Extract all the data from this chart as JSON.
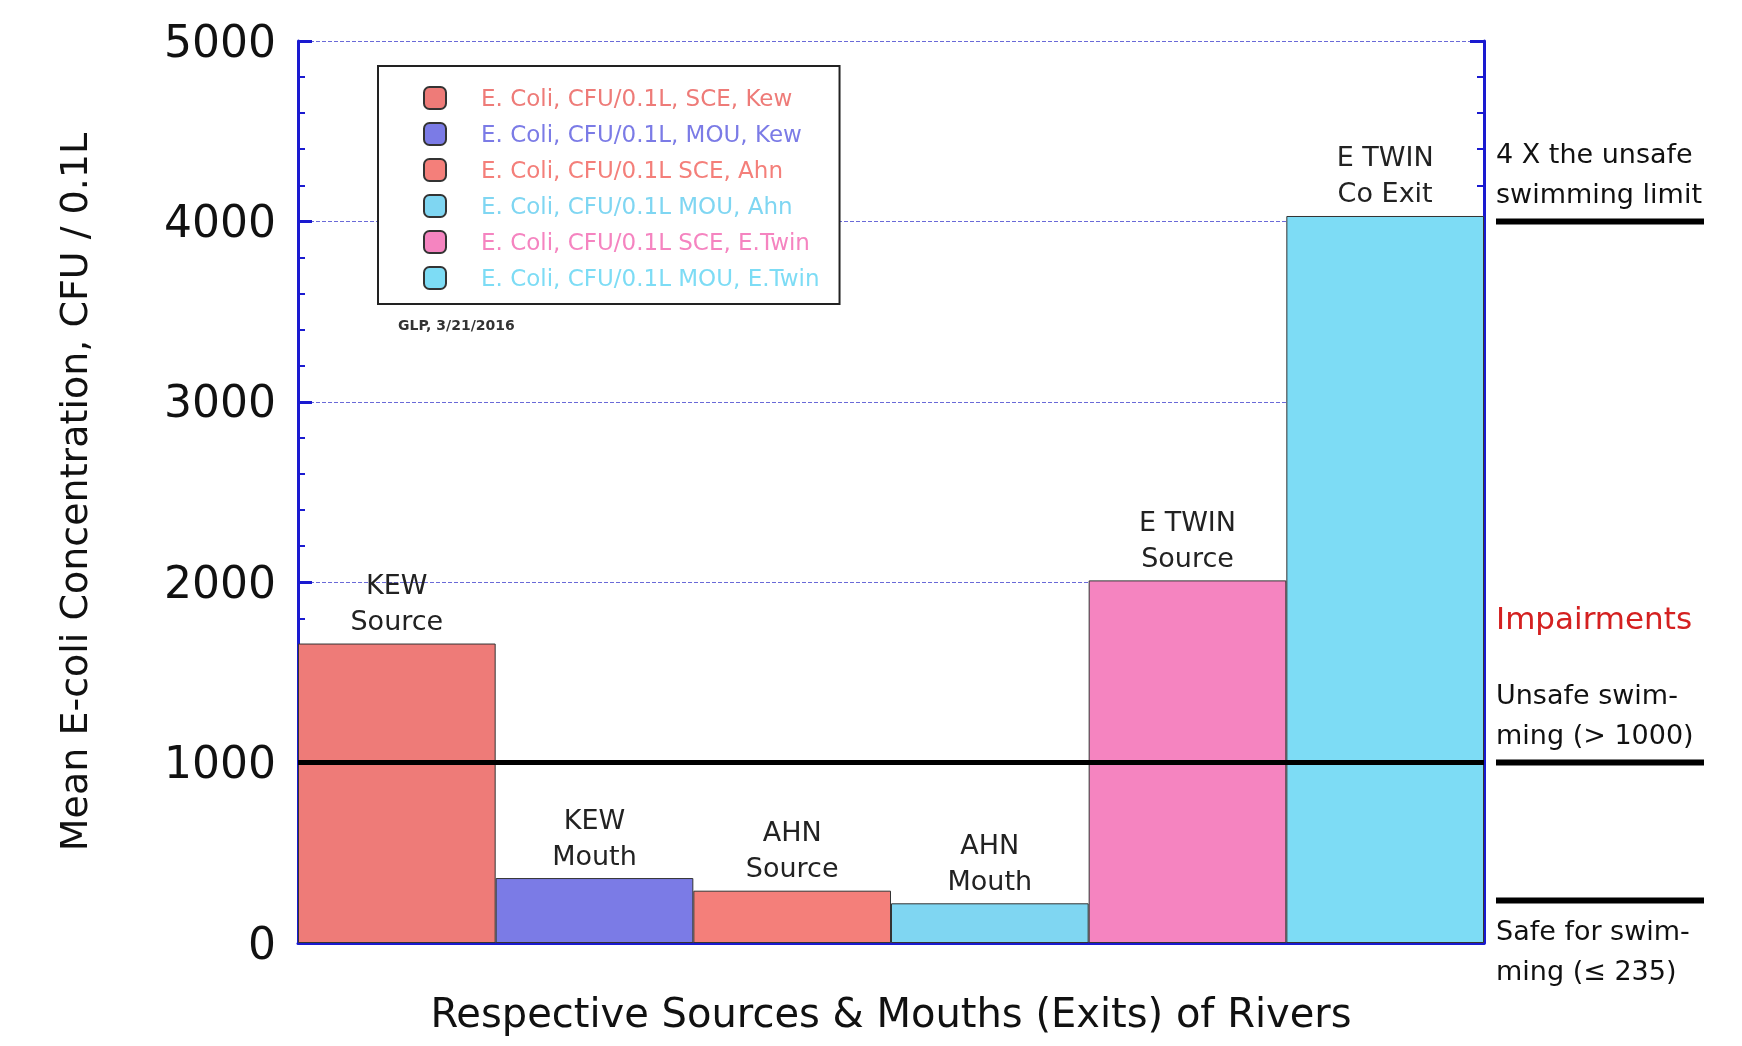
{
  "chart_data": {
    "type": "bar",
    "xlabel": "Respective Sources & Mouths (Exits) of Rivers",
    "ylabel": "Mean E-coli Concentration, CFU / 0.1L",
    "categories": [
      "KEW\nSource",
      "KEW\nMouth",
      "AHN\nSource",
      "AHN\nMouth",
      "E TWIN\nSource",
      "E TWIN\nCo Exit"
    ],
    "series": [
      {
        "name": "E. Coli, CFU/0.1L, SCE, Kew",
        "color": "#ee7b78",
        "values": [
          1660,
          null,
          null,
          null,
          null,
          null
        ]
      },
      {
        "name": "E. Coli, CFU/0.1L, MOU, Kew",
        "color": "#7b7be6",
        "values": [
          null,
          360,
          null,
          null,
          null,
          null
        ]
      },
      {
        "name": "E. Coli, CFU/0.1L SCE, Ahn",
        "color": "#f47f7a",
        "values": [
          null,
          null,
          290,
          null,
          null,
          null
        ]
      },
      {
        "name": "E. Coli, CFU/0.1L MOU, Ahn",
        "color": "#7fd6f2",
        "values": [
          null,
          null,
          null,
          220,
          null,
          null
        ]
      },
      {
        "name": "E. Coli, CFU/0.1L SCE, E.Twin",
        "color": "#f584c0",
        "values": [
          null,
          null,
          null,
          null,
          2010,
          null
        ]
      },
      {
        "name": "E. Coli, CFU/0.1L MOU, E.Twin",
        "color": "#7ddcf5",
        "values": [
          null,
          null,
          null,
          null,
          null,
          4030
        ]
      }
    ],
    "ylim": [
      0,
      5000
    ],
    "yticks": [
      0,
      1000,
      2000,
      3000,
      4000,
      5000
    ],
    "grid": "y",
    "legend": "top left",
    "tick_labels": "y",
    "ref_lines": [
      {
        "axis": "y",
        "value": 4000,
        "label": "4 X the unsafe\nswimming limit"
      },
      {
        "axis": "y",
        "value": 1000,
        "label": "Unsafe swim-\nming (> 1000)",
        "color": "#000000",
        "line_style": "solid"
      },
      {
        "axis": "y",
        "value": 235,
        "label": "Safe for swim-\nming (≤ 235)"
      }
    ],
    "annotations": [
      "Impairments",
      "GLP, 3/21/2016"
    ]
  }
}
